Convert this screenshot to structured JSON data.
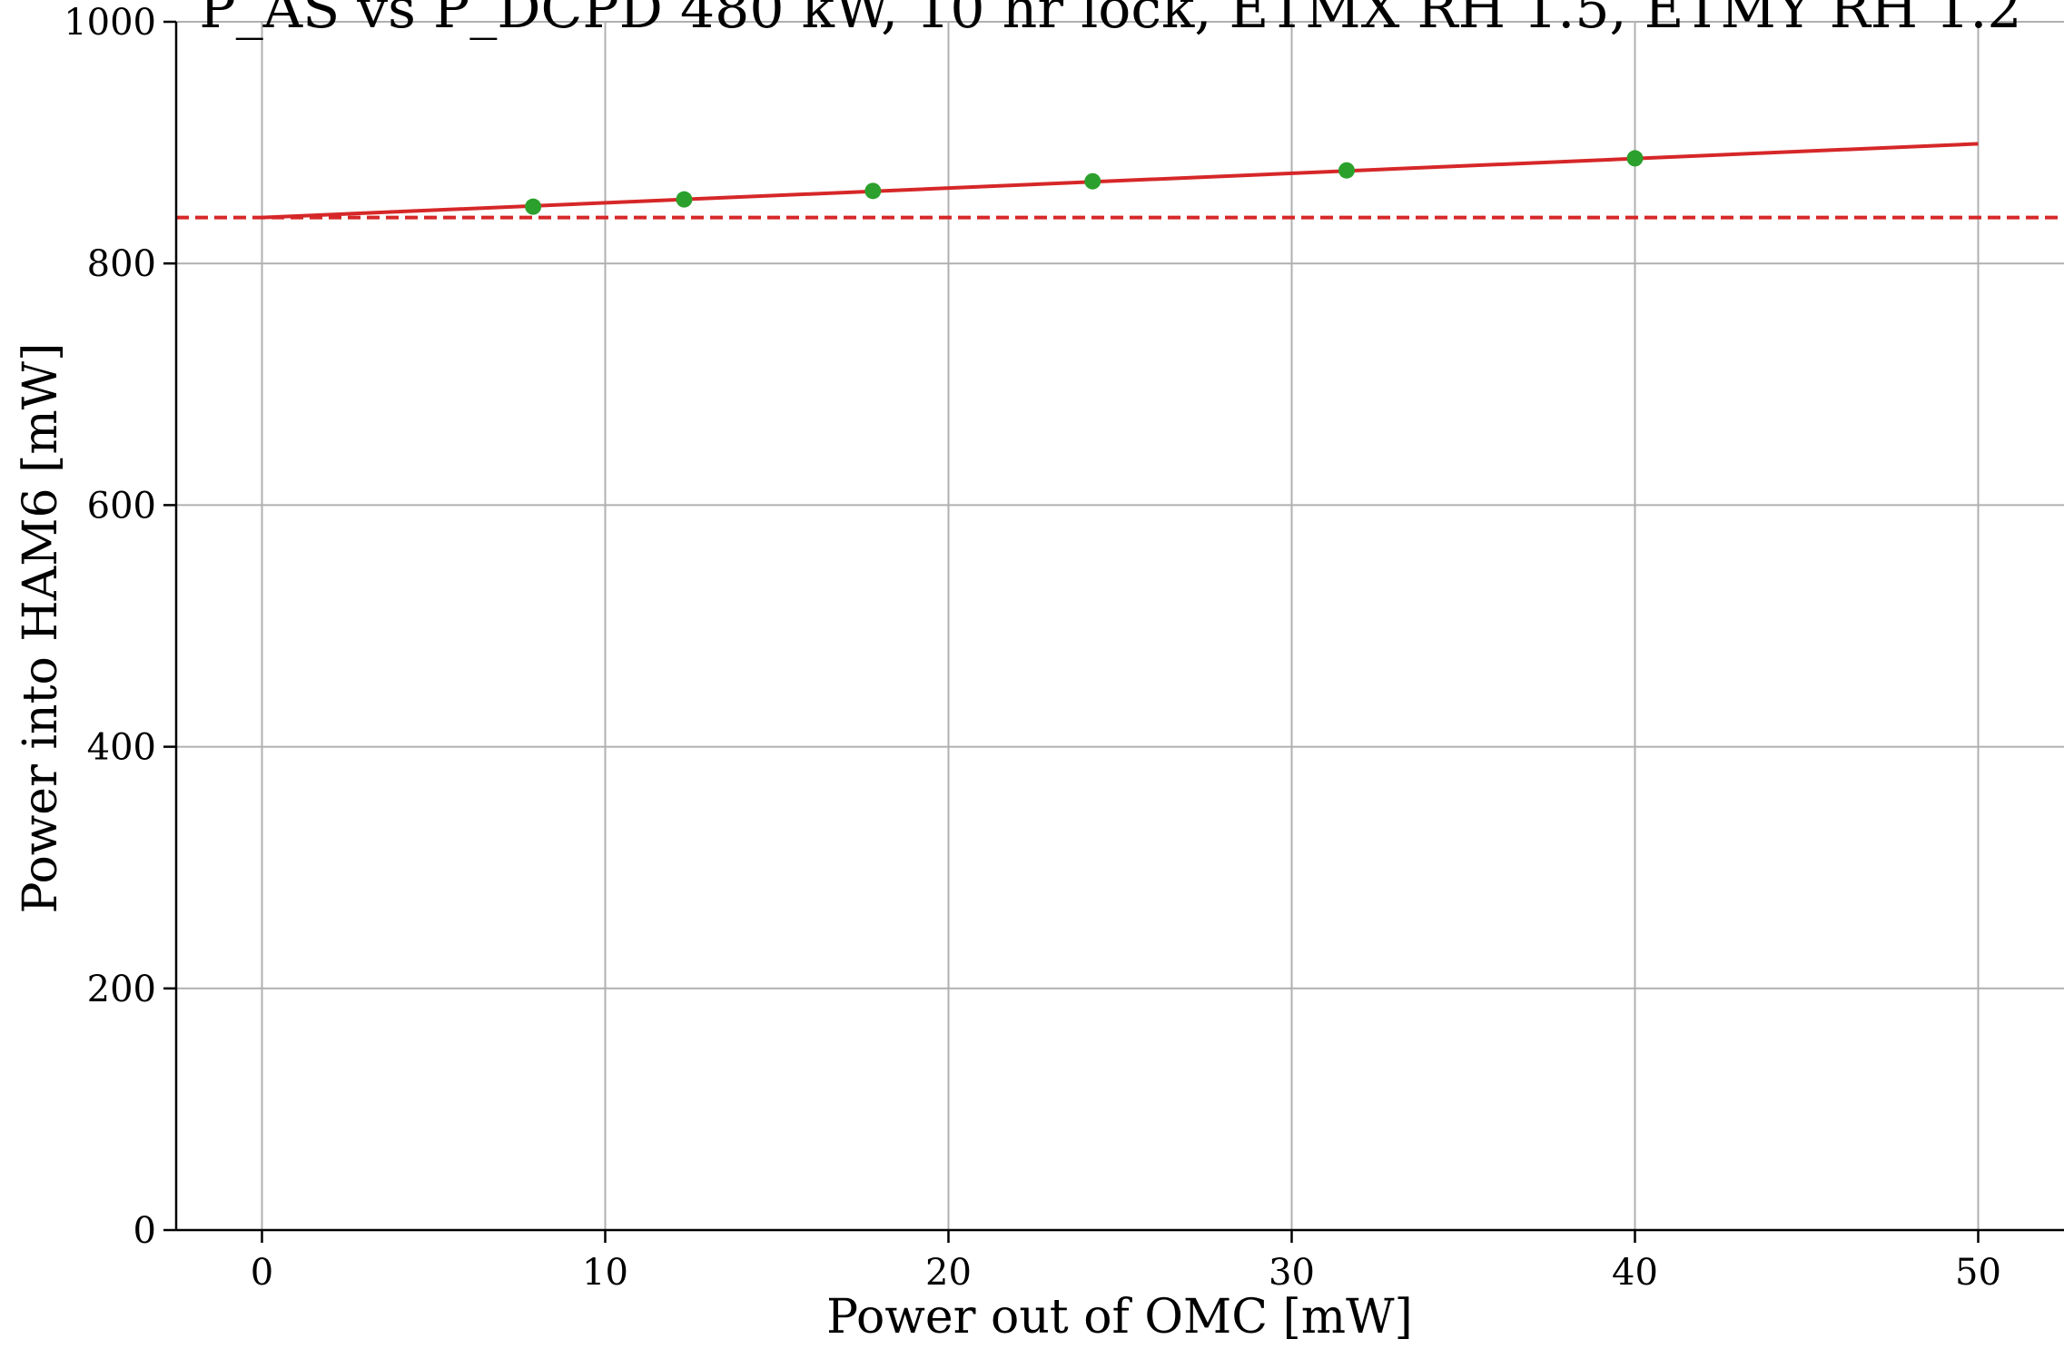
{
  "chart_data": {
    "type": "scatter",
    "title": "P_AS vs P_DCPD 480 kW, 10 hr lock, ETMX RH 1.5, ETMY RH 1.2",
    "xlabel": "Power out of OMC [mW]",
    "ylabel": "Power into HAM6 [mW]",
    "xlim": [
      -2.5,
      52.5
    ],
    "ylim": [
      0,
      1000
    ],
    "xticks": [
      0,
      10,
      20,
      30,
      40,
      50
    ],
    "yticks": [
      0,
      200,
      400,
      600,
      800,
      1000
    ],
    "grid": true,
    "legend": "none",
    "series": [
      {
        "kind": "scatter",
        "color": "#2ca02c",
        "x": [
          7.9,
          12.3,
          17.8,
          24.2,
          31.6,
          40.0
        ],
        "y": [
          847,
          853,
          860,
          868,
          877,
          887
        ]
      },
      {
        "kind": "line",
        "color": "#d62728",
        "style": "solid",
        "x": [
          0,
          50
        ],
        "y": [
          838,
          899
        ]
      },
      {
        "kind": "line",
        "color": "#d62728",
        "style": "dashed",
        "x": [
          -2.5,
          52.5
        ],
        "y": [
          838,
          838
        ]
      }
    ]
  }
}
